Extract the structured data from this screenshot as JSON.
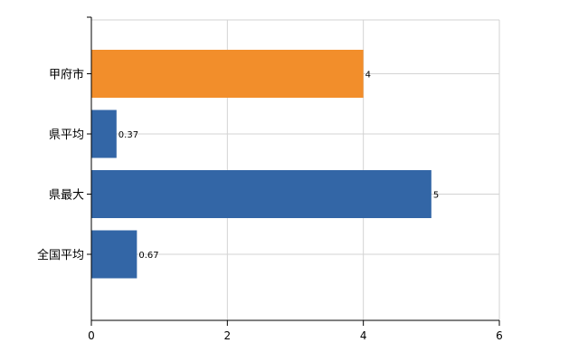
{
  "chart_data": {
    "type": "bar",
    "orientation": "horizontal",
    "categories": [
      "甲府市",
      "県平均",
      "県最大",
      "全国平均"
    ],
    "values": [
      4,
      0.37,
      5,
      0.67
    ],
    "data_labels": [
      "4",
      "0.37",
      "5",
      "0.67"
    ],
    "bar_colors": [
      "#f28e2b",
      "#3366a6",
      "#3366a6",
      "#3366a6"
    ],
    "xlim": [
      0,
      6
    ],
    "x_ticks": [
      0,
      2,
      4,
      6
    ],
    "x_tick_labels": [
      "0",
      "2",
      "4",
      "6"
    ],
    "grid": true,
    "title": "",
    "xlabel": "",
    "ylabel": ""
  }
}
